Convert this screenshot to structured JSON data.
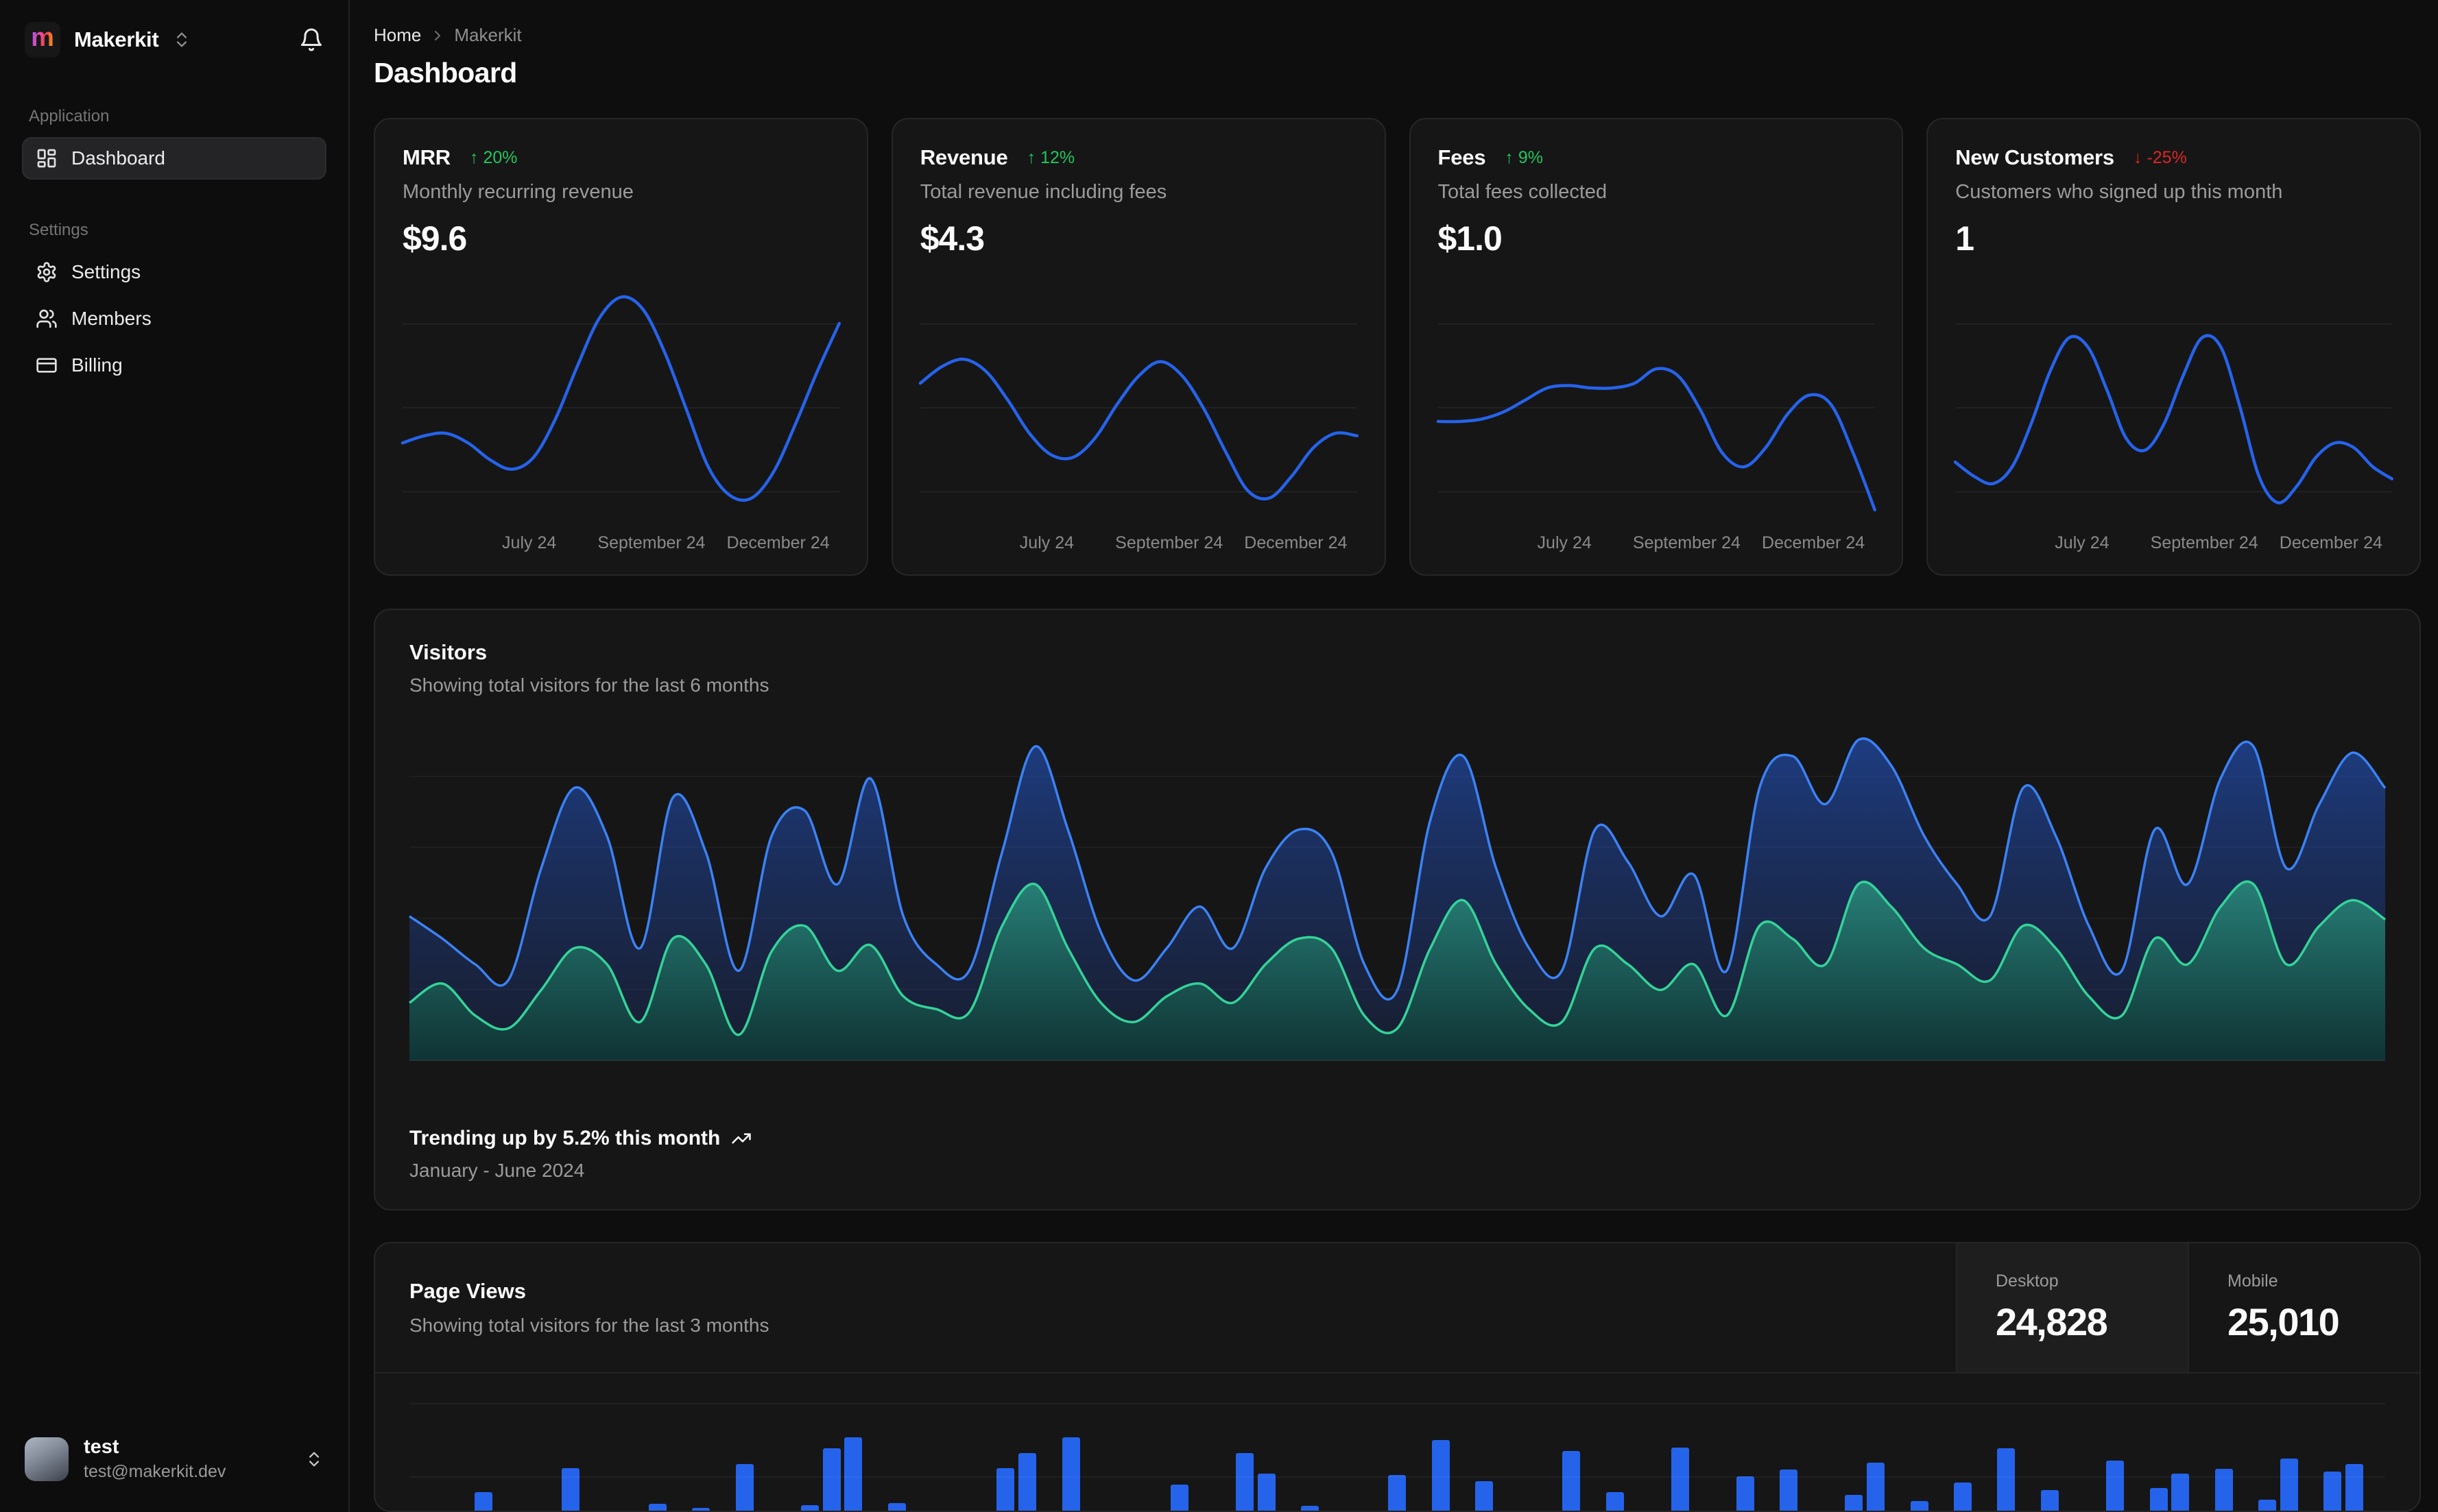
{
  "brand": {
    "name": "Makerkit",
    "logo_letter": "m"
  },
  "icons": {
    "trend_up": "↑",
    "trend_down": "↓"
  },
  "colors": {
    "accent_blue": "#2563eb",
    "line_blue": "#3b82f6",
    "line_green": "#34d399",
    "badge_green": "#22c55e",
    "badge_red": "#dc2626",
    "card_bg": "#161616",
    "page_bg": "#0e0e0e"
  },
  "sidebar": {
    "sections": [
      {
        "label": "Application",
        "items": [
          {
            "label": "Dashboard",
            "active": true
          }
        ]
      },
      {
        "label": "Settings",
        "items": [
          {
            "label": "Settings"
          },
          {
            "label": "Members"
          },
          {
            "label": "Billing"
          }
        ]
      }
    ],
    "user": {
      "name": "test",
      "email": "test@makerkit.dev"
    }
  },
  "breadcrumb": {
    "home": "Home",
    "current": "Makerkit"
  },
  "page_title": "Dashboard",
  "stat_x_labels": [
    "July 24",
    "September 24",
    "December 24"
  ],
  "stat_cards": [
    {
      "title": "MRR",
      "change": "20%",
      "trend": "up",
      "subtitle": "Monthly recurring revenue",
      "value": "$9.6",
      "series": [
        30,
        33,
        34,
        30,
        23,
        19,
        24,
        40,
        62,
        82,
        91,
        86,
        68,
        44,
        20,
        8,
        7,
        18,
        38,
        60,
        80
      ]
    },
    {
      "title": "Revenue",
      "change": "12%",
      "trend": "up",
      "subtitle": "Total revenue including fees",
      "value": "$4.3",
      "series": [
        55,
        62,
        65,
        60,
        48,
        34,
        25,
        24,
        32,
        46,
        58,
        64,
        58,
        44,
        26,
        10,
        7,
        16,
        28,
        34,
        33
      ]
    },
    {
      "title": "Fees",
      "change": "9%",
      "trend": "up",
      "subtitle": "Total fees collected",
      "value": "$1.0",
      "series": [
        39,
        39,
        40,
        43,
        48,
        53,
        54,
        53,
        53,
        55,
        61,
        58,
        44,
        26,
        20,
        28,
        42,
        50,
        46,
        26,
        2
      ]
    },
    {
      "title": "New Customers",
      "change": "-25%",
      "trend": "down",
      "subtitle": "Customers who signed up this month",
      "value": "1",
      "series": [
        22,
        16,
        13,
        20,
        38,
        60,
        74,
        70,
        52,
        32,
        27,
        38,
        58,
        74,
        70,
        45,
        16,
        5,
        12,
        24,
        30,
        28,
        20,
        15
      ]
    }
  ],
  "visitors": {
    "title": "Visitors",
    "subtitle": "Showing total visitors for the last 6 months",
    "footer_primary": "Trending up by 5.2% this month",
    "footer_secondary": "January - June 2024",
    "chart_data": {
      "type": "area",
      "stacked_look": true,
      "series": [
        {
          "name": "desktop",
          "values": [
            45,
            38,
            30,
            25,
            60,
            85,
            70,
            35,
            82,
            65,
            28,
            70,
            78,
            55,
            88,
            45,
            30,
            28,
            65,
            98,
            72,
            40,
            25,
            35,
            48,
            35,
            60,
            72,
            65,
            30,
            22,
            75,
            95,
            60,
            35,
            28,
            72,
            62,
            45,
            58,
            28,
            85,
            95,
            80,
            100,
            92,
            70,
            55,
            45,
            85,
            70,
            42,
            28,
            72,
            55,
            88,
            98,
            60,
            80,
            96,
            85
          ]
        },
        {
          "name": "mobile",
          "values": [
            18,
            24,
            14,
            10,
            22,
            35,
            30,
            12,
            38,
            30,
            8,
            34,
            42,
            28,
            36,
            20,
            16,
            15,
            42,
            55,
            35,
            18,
            12,
            20,
            24,
            18,
            30,
            38,
            35,
            14,
            10,
            35,
            50,
            30,
            16,
            12,
            35,
            30,
            22,
            30,
            14,
            42,
            38,
            30,
            55,
            48,
            35,
            30,
            25,
            42,
            35,
            20,
            14,
            38,
            30,
            48,
            55,
            30,
            42,
            50,
            44
          ]
        }
      ]
    }
  },
  "page_views": {
    "title": "Page Views",
    "subtitle": "Showing total visitors for the last 3 months",
    "stats": [
      {
        "label": "Desktop",
        "value": "24,828",
        "active": true
      },
      {
        "label": "Mobile",
        "value": "25,010",
        "active": false
      }
    ],
    "chart_data": {
      "type": "bar",
      "values": [
        0,
        17,
        0,
        38,
        0,
        0,
        0,
        64,
        10,
        0,
        0,
        25,
        0,
        21,
        0,
        68,
        0,
        0,
        24,
        85,
        97,
        0,
        26,
        0,
        0,
        0,
        0,
        64,
        80,
        0,
        97,
        0,
        0,
        0,
        0,
        46,
        0,
        0,
        80,
        58,
        0,
        23,
        0,
        0,
        0,
        56,
        0,
        94,
        0,
        50,
        0,
        14,
        0,
        82,
        0,
        38,
        0,
        0,
        86,
        0,
        12,
        55,
        0,
        62,
        0,
        0,
        35,
        70,
        0,
        28,
        0,
        48,
        0,
        85,
        0,
        40,
        0,
        0,
        72,
        0,
        42,
        58,
        0,
        63,
        0,
        30,
        74,
        0,
        60,
        68,
        0
      ]
    }
  }
}
